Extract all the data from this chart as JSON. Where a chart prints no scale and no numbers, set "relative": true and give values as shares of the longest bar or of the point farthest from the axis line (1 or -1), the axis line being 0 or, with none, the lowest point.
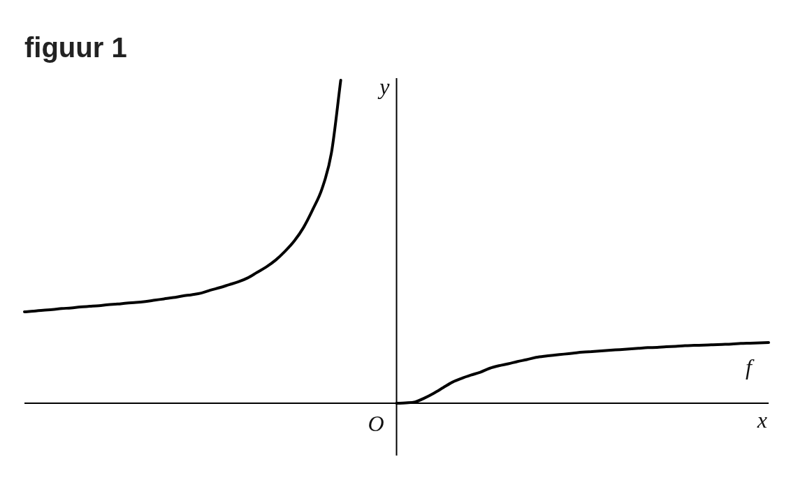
{
  "chart_data": {
    "type": "line",
    "title": "figuur 1",
    "xlabel": "x",
    "ylabel": "y",
    "relative": true,
    "legend": false,
    "marker": "none",
    "line_style": "solid",
    "annotations": [
      "O"
    ],
    "categories": [
      null,
      null,
      null,
      null,
      null,
      null,
      null,
      null,
      null,
      null,
      null,
      null,
      null,
      null,
      null,
      null,
      null,
      null,
      null,
      null,
      null,
      null,
      null,
      null,
      null,
      null,
      null,
      null,
      null,
      null,
      null,
      null,
      null,
      null,
      null,
      null,
      null,
      null,
      null,
      null,
      null,
      null,
      null,
      null,
      null,
      null,
      null,
      null,
      null,
      null,
      null,
      null,
      null,
      null,
      null,
      null,
      null,
      null,
      null,
      null,
      null,
      null,
      null,
      null,
      null,
      null,
      null,
      null,
      null,
      null,
      null,
      null,
      null,
      null,
      null,
      null,
      null,
      null,
      null,
      null,
      null
    ],
    "series": [
      {
        "name": "f",
        "color": "#000000",
        "values": [
          0.283,
          0.285,
          0.288,
          0.29,
          0.293,
          0.295,
          0.298,
          0.3,
          0.302,
          0.305,
          0.307,
          0.31,
          0.312,
          0.315,
          0.319,
          0.323,
          0.327,
          0.332,
          0.336,
          0.341,
          0.35,
          0.358,
          0.367,
          0.376,
          0.388,
          0.405,
          0.422,
          0.443,
          0.47,
          0.502,
          0.544,
          0.6,
          0.665,
          0.775,
          1,
          null,
          null,
          null,
          null,
          null,
          0,
          0.001,
          0.004,
          0.016,
          0.031,
          0.048,
          0.065,
          0.077,
          0.087,
          0.096,
          0.108,
          0.116,
          0.122,
          0.129,
          0.135,
          0.142,
          0.146,
          0.149,
          0.152,
          0.155,
          0.158,
          0.16,
          0.162,
          0.164,
          0.166,
          0.168,
          0.17,
          0.172,
          0.173,
          0.175,
          0.176,
          0.178,
          0.179,
          0.18,
          0.181,
          0.182,
          0.183,
          0.185,
          0.186,
          0.187,
          0.188
        ]
      }
    ]
  }
}
